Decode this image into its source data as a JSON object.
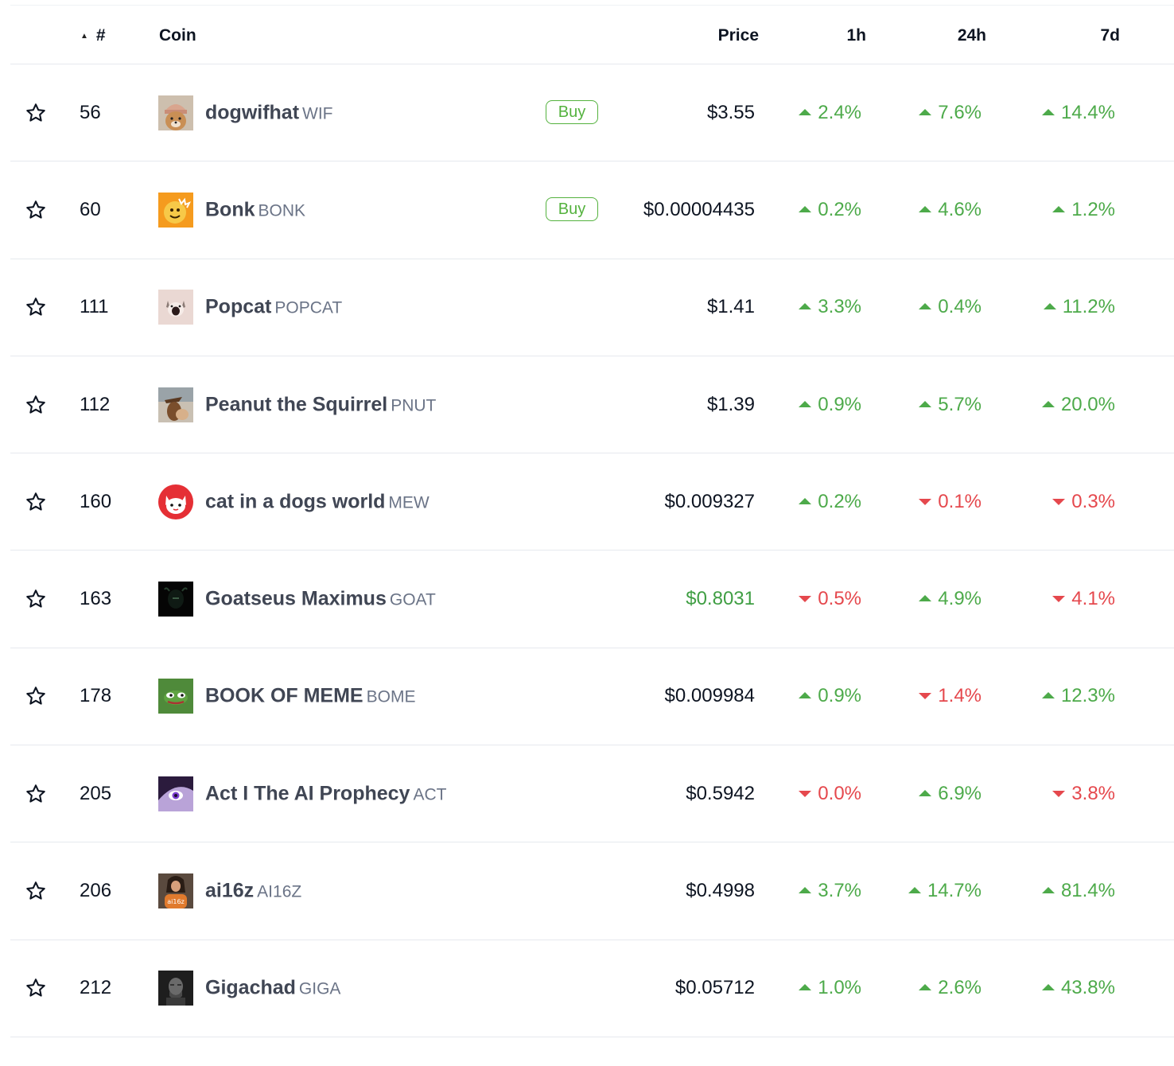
{
  "header": {
    "rank_label": "#",
    "sort_indicator": "▲",
    "coin_label": "Coin",
    "price_label": "Price",
    "h1_label": "1h",
    "h24_label": "24h",
    "d7_label": "7d"
  },
  "buy_label": "Buy",
  "colors": {
    "up": "#4daa4a",
    "down": "#e5484d",
    "buy_border": "#54b23e",
    "text": "#0d1421",
    "name": "#404654",
    "symbol": "#6b7487"
  },
  "rows": [
    {
      "rank": "56",
      "name": "dogwifhat",
      "symbol": "WIF",
      "buy": true,
      "price": "$3.55",
      "price_up": false,
      "h1": "2.4%",
      "h1_dir": "up",
      "h24": "7.6%",
      "h24_dir": "up",
      "d7": "14.4%",
      "d7_dir": "up",
      "logo": "dogwifhat-logo"
    },
    {
      "rank": "60",
      "name": "Bonk",
      "symbol": "BONK",
      "buy": true,
      "price": "$0.00004435",
      "price_up": false,
      "h1": "0.2%",
      "h1_dir": "up",
      "h24": "4.6%",
      "h24_dir": "up",
      "d7": "1.2%",
      "d7_dir": "up",
      "logo": "bonk-logo"
    },
    {
      "rank": "111",
      "name": "Popcat",
      "symbol": "POPCAT",
      "buy": false,
      "price": "$1.41",
      "price_up": false,
      "h1": "3.3%",
      "h1_dir": "up",
      "h24": "0.4%",
      "h24_dir": "up",
      "d7": "11.2%",
      "d7_dir": "up",
      "logo": "popcat-logo"
    },
    {
      "rank": "112",
      "name": "Peanut the Squirrel",
      "symbol": "PNUT",
      "buy": false,
      "price": "$1.39",
      "price_up": false,
      "h1": "0.9%",
      "h1_dir": "up",
      "h24": "5.7%",
      "h24_dir": "up",
      "d7": "20.0%",
      "d7_dir": "up",
      "logo": "pnut-logo"
    },
    {
      "rank": "160",
      "name": "cat in a dogs world",
      "symbol": "MEW",
      "buy": false,
      "price": "$0.009327",
      "price_up": false,
      "h1": "0.2%",
      "h1_dir": "up",
      "h24": "0.1%",
      "h24_dir": "down",
      "d7": "0.3%",
      "d7_dir": "down",
      "logo": "mew-logo"
    },
    {
      "rank": "163",
      "name": "Goatseus Maximus",
      "symbol": "GOAT",
      "buy": false,
      "price": "$0.8031",
      "price_up": true,
      "h1": "0.5%",
      "h1_dir": "down",
      "h24": "4.9%",
      "h24_dir": "up",
      "d7": "4.1%",
      "d7_dir": "down",
      "logo": "goat-logo"
    },
    {
      "rank": "178",
      "name": "BOOK OF MEME",
      "symbol": "BOME",
      "buy": false,
      "price": "$0.009984",
      "price_up": false,
      "h1": "0.9%",
      "h1_dir": "up",
      "h24": "1.4%",
      "h24_dir": "down",
      "d7": "12.3%",
      "d7_dir": "up",
      "logo": "bome-logo"
    },
    {
      "rank": "205",
      "name": "Act I The AI Prophecy",
      "symbol": "ACT",
      "buy": false,
      "price": "$0.5942",
      "price_up": false,
      "h1": "0.0%",
      "h1_dir": "down",
      "h24": "6.9%",
      "h24_dir": "up",
      "d7": "3.8%",
      "d7_dir": "down",
      "logo": "act-logo"
    },
    {
      "rank": "206",
      "name": "ai16z",
      "symbol": "AI16Z",
      "buy": false,
      "price": "$0.4998",
      "price_up": false,
      "h1": "3.7%",
      "h1_dir": "up",
      "h24": "14.7%",
      "h24_dir": "up",
      "d7": "81.4%",
      "d7_dir": "up",
      "logo": "ai16z-logo"
    },
    {
      "rank": "212",
      "name": "Gigachad",
      "symbol": "GIGA",
      "buy": false,
      "price": "$0.05712",
      "price_up": false,
      "h1": "1.0%",
      "h1_dir": "up",
      "h24": "2.6%",
      "h24_dir": "up",
      "d7": "43.8%",
      "d7_dir": "up",
      "logo": "giga-logo"
    }
  ]
}
